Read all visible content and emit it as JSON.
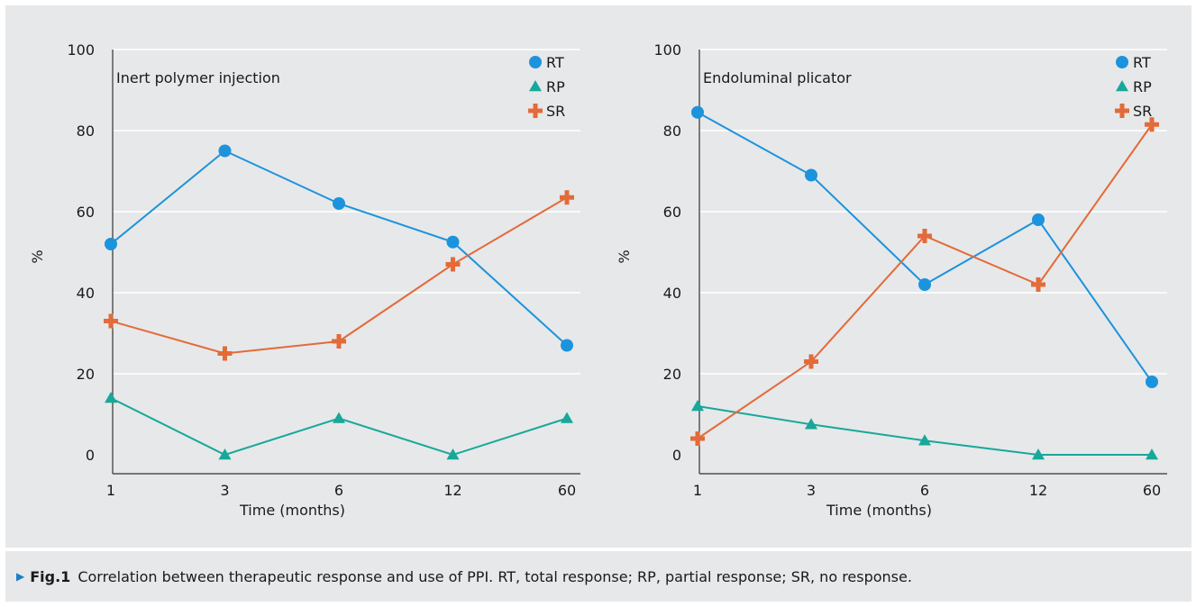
{
  "caption": {
    "label": "Fig.1",
    "text": "Correlation between therapeutic response and use of PPI. RT, total response; RP, partial response; SR, no response."
  },
  "colors": {
    "RT": "#1c93dd",
    "RP": "#17a89a",
    "SR": "#e36a39",
    "grid": "#ffffff",
    "axis": "#333333",
    "caption_marker": "#1c7fc5"
  },
  "chart_data": [
    {
      "type": "line",
      "title": "Inert polymer injection",
      "xlabel": "Time (months)",
      "ylabel": "%",
      "categories": [
        "1",
        "3",
        "6",
        "12",
        "60"
      ],
      "ylim": [
        0,
        100
      ],
      "yticks": [
        "0",
        "20",
        "40",
        "60",
        "80",
        "100"
      ],
      "grid": true,
      "legend_position": "top-right",
      "series": [
        {
          "name": "RT",
          "marker": "circle",
          "values": [
            52,
            75,
            62,
            52.5,
            27
          ]
        },
        {
          "name": "RP",
          "marker": "triangle",
          "values": [
            14,
            0,
            9,
            0,
            9
          ]
        },
        {
          "name": "SR",
          "marker": "cross",
          "values": [
            33,
            25,
            28,
            47,
            63.5
          ]
        }
      ]
    },
    {
      "type": "line",
      "title": "Endoluminal plicator",
      "xlabel": "Time (months)",
      "ylabel": "%",
      "categories": [
        "1",
        "3",
        "6",
        "12",
        "60"
      ],
      "ylim": [
        0,
        100
      ],
      "yticks": [
        "0",
        "20",
        "40",
        "60",
        "80",
        "100"
      ],
      "grid": true,
      "legend_position": "top-right",
      "series": [
        {
          "name": "RT",
          "marker": "circle",
          "values": [
            84.5,
            69,
            42,
            58,
            18
          ]
        },
        {
          "name": "RP",
          "marker": "triangle",
          "values": [
            12,
            7.5,
            3.5,
            0,
            0
          ]
        },
        {
          "name": "SR",
          "marker": "cross",
          "values": [
            4,
            23,
            54,
            42,
            81.5
          ]
        }
      ]
    }
  ]
}
